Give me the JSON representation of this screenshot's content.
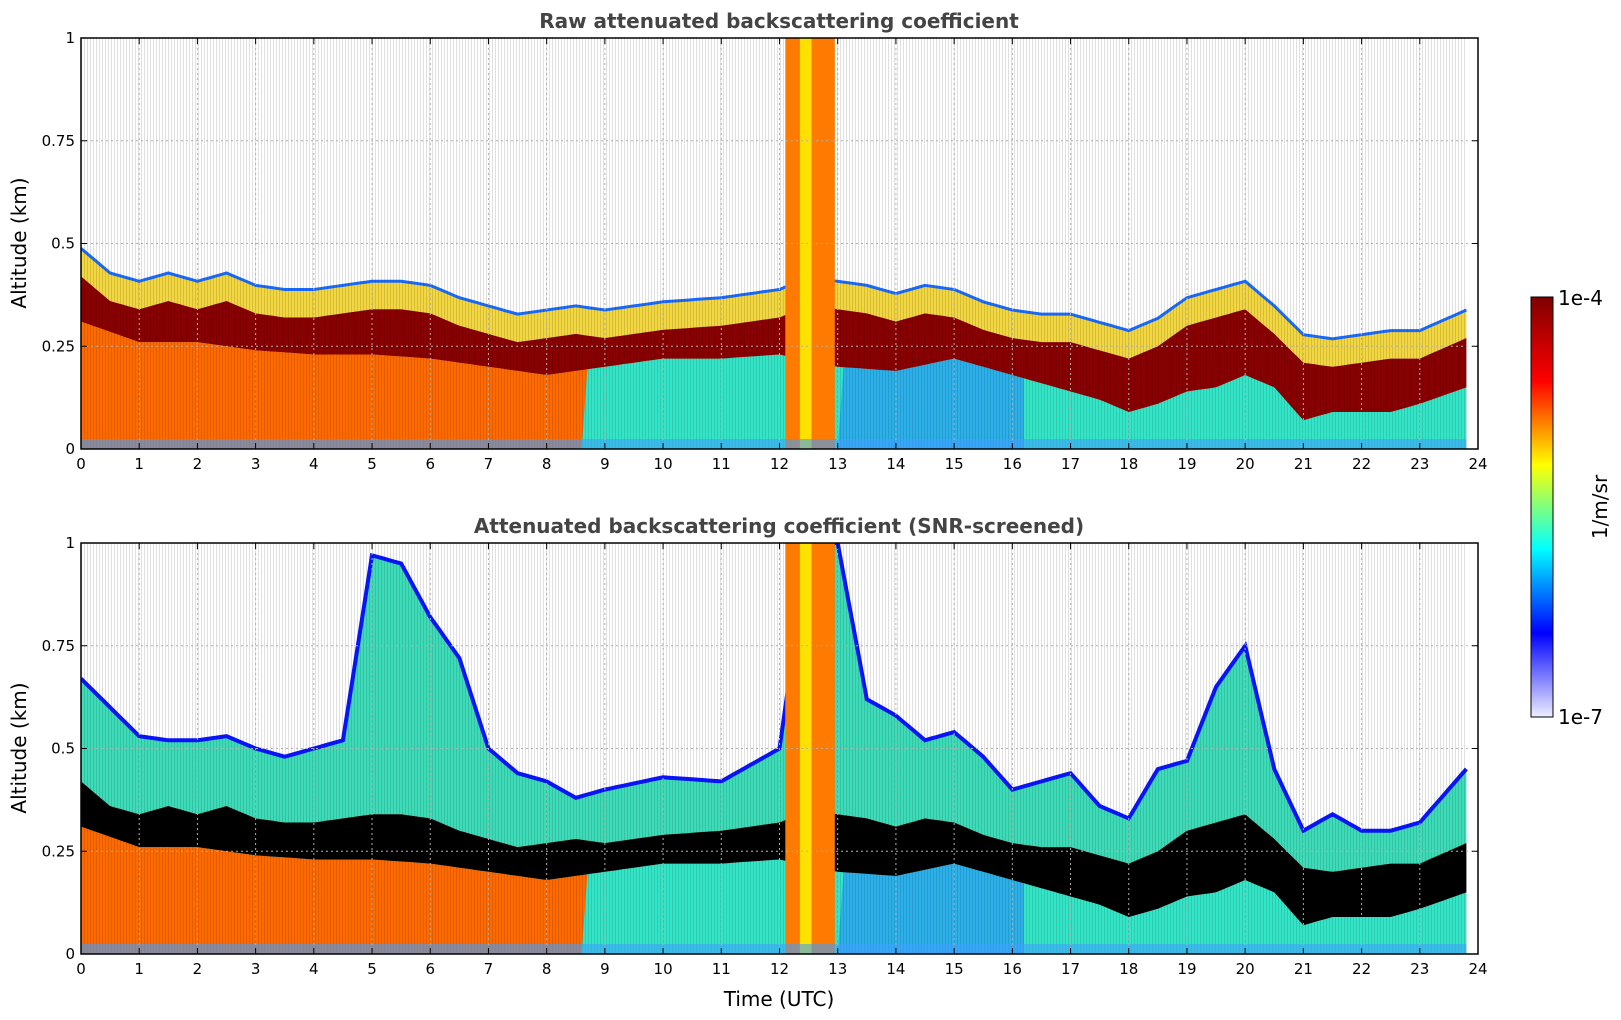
{
  "figure": {
    "colorbar": {
      "label": "1/m/sr",
      "max_label": "1e-4",
      "min_label": "1e-7",
      "vmin": 1e-07,
      "vmax": 0.0001,
      "scale": "log",
      "colormap": "jet",
      "colors": [
        "#eeeeff",
        "#0000ff",
        "#00ffff",
        "#ffff00",
        "#ff0000",
        "#7f0000"
      ]
    }
  },
  "chart_data": [
    {
      "type": "heatmap",
      "title": "Raw attenuated backscattering coefficient",
      "xlabel": "",
      "ylabel": "Altitude (km)",
      "xlim": [
        0,
        24
      ],
      "ylim": [
        0,
        1
      ],
      "x_ticks": [
        "0",
        "1",
        "2",
        "3",
        "4",
        "5",
        "6",
        "7",
        "8",
        "9",
        "10",
        "11",
        "12",
        "13",
        "14",
        "15",
        "16",
        "17",
        "18",
        "19",
        "20",
        "21",
        "22",
        "23",
        "24"
      ],
      "y_ticks": [
        "0",
        "0.25",
        "0.5",
        "0.75",
        "1"
      ],
      "grid": true,
      "screened": false,
      "layer_top_km": [
        [
          0,
          0.42
        ],
        [
          0.5,
          0.36
        ],
        [
          1,
          0.34
        ],
        [
          1.5,
          0.36
        ],
        [
          2,
          0.34
        ],
        [
          2.5,
          0.36
        ],
        [
          3,
          0.33
        ],
        [
          3.5,
          0.32
        ],
        [
          4,
          0.32
        ],
        [
          4.5,
          0.33
        ],
        [
          5,
          0.34
        ],
        [
          5.5,
          0.34
        ],
        [
          6,
          0.33
        ],
        [
          6.5,
          0.3
        ],
        [
          7,
          0.28
        ],
        [
          7.5,
          0.26
        ],
        [
          8,
          0.27
        ],
        [
          8.5,
          0.28
        ],
        [
          9,
          0.27
        ],
        [
          10,
          0.29
        ],
        [
          11,
          0.3
        ],
        [
          12,
          0.32
        ],
        [
          12.5,
          0.35
        ],
        [
          13,
          0.34
        ],
        [
          13.5,
          0.33
        ],
        [
          14,
          0.31
        ],
        [
          14.5,
          0.33
        ],
        [
          15,
          0.32
        ],
        [
          15.5,
          0.29
        ],
        [
          16,
          0.27
        ],
        [
          16.5,
          0.26
        ],
        [
          17,
          0.26
        ],
        [
          17.5,
          0.24
        ],
        [
          18,
          0.22
        ],
        [
          18.5,
          0.25
        ],
        [
          19,
          0.3
        ],
        [
          19.5,
          0.32
        ],
        [
          20,
          0.34
        ],
        [
          20.5,
          0.28
        ],
        [
          21,
          0.21
        ],
        [
          21.5,
          0.2
        ],
        [
          22,
          0.21
        ],
        [
          22.5,
          0.22
        ],
        [
          23,
          0.22
        ],
        [
          23.8,
          0.27
        ]
      ],
      "layer_bottom_km": [
        [
          0,
          0.31
        ],
        [
          1,
          0.26
        ],
        [
          2,
          0.26
        ],
        [
          3,
          0.24
        ],
        [
          4,
          0.23
        ],
        [
          5,
          0.23
        ],
        [
          6,
          0.22
        ],
        [
          7,
          0.2
        ],
        [
          8,
          0.18
        ],
        [
          9,
          0.2
        ],
        [
          10,
          0.22
        ],
        [
          11,
          0.22
        ],
        [
          12,
          0.23
        ],
        [
          13,
          0.2
        ],
        [
          14,
          0.19
        ],
        [
          15,
          0.22
        ],
        [
          16,
          0.18
        ],
        [
          17,
          0.14
        ],
        [
          17.5,
          0.12
        ],
        [
          18,
          0.09
        ],
        [
          18.5,
          0.11
        ],
        [
          19,
          0.14
        ],
        [
          19.5,
          0.15
        ],
        [
          20,
          0.18
        ],
        [
          20.5,
          0.15
        ],
        [
          21,
          0.07
        ],
        [
          21.5,
          0.09
        ],
        [
          22,
          0.09
        ],
        [
          22.5,
          0.09
        ],
        [
          23,
          0.11
        ],
        [
          23.8,
          0.15
        ]
      ]
    },
    {
      "type": "heatmap",
      "title": "Attenuated backscattering coefficient (SNR-screened)",
      "xlabel": "Time (UTC)",
      "ylabel": "Altitude (km)",
      "xlim": [
        0,
        24
      ],
      "ylim": [
        0,
        1
      ],
      "x_ticks": [
        "0",
        "1",
        "2",
        "3",
        "4",
        "5",
        "6",
        "7",
        "8",
        "9",
        "10",
        "11",
        "12",
        "13",
        "14",
        "15",
        "16",
        "17",
        "18",
        "19",
        "20",
        "21",
        "22",
        "23",
        "24"
      ],
      "y_ticks": [
        "0",
        "0.25",
        "0.5",
        "0.75",
        "1"
      ],
      "grid": true,
      "screened": true,
      "layer_top_km": [
        [
          0,
          0.42
        ],
        [
          0.5,
          0.36
        ],
        [
          1,
          0.34
        ],
        [
          1.5,
          0.36
        ],
        [
          2,
          0.34
        ],
        [
          2.5,
          0.36
        ],
        [
          3,
          0.33
        ],
        [
          3.5,
          0.32
        ],
        [
          4,
          0.32
        ],
        [
          4.5,
          0.33
        ],
        [
          5,
          0.34
        ],
        [
          5.5,
          0.34
        ],
        [
          6,
          0.33
        ],
        [
          6.5,
          0.3
        ],
        [
          7,
          0.28
        ],
        [
          7.5,
          0.26
        ],
        [
          8,
          0.27
        ],
        [
          8.5,
          0.28
        ],
        [
          9,
          0.27
        ],
        [
          10,
          0.29
        ],
        [
          11,
          0.3
        ],
        [
          12,
          0.32
        ],
        [
          12.5,
          0.35
        ],
        [
          13,
          0.34
        ],
        [
          13.5,
          0.33
        ],
        [
          14,
          0.31
        ],
        [
          14.5,
          0.33
        ],
        [
          15,
          0.32
        ],
        [
          15.5,
          0.29
        ],
        [
          16,
          0.27
        ],
        [
          16.5,
          0.26
        ],
        [
          17,
          0.26
        ],
        [
          17.5,
          0.24
        ],
        [
          18,
          0.22
        ],
        [
          18.5,
          0.25
        ],
        [
          19,
          0.3
        ],
        [
          19.5,
          0.32
        ],
        [
          20,
          0.34
        ],
        [
          20.5,
          0.28
        ],
        [
          21,
          0.21
        ],
        [
          21.5,
          0.2
        ],
        [
          22,
          0.21
        ],
        [
          22.5,
          0.22
        ],
        [
          23,
          0.22
        ],
        [
          23.8,
          0.27
        ]
      ],
      "layer_bottom_km": [
        [
          0,
          0.31
        ],
        [
          1,
          0.26
        ],
        [
          2,
          0.26
        ],
        [
          3,
          0.24
        ],
        [
          4,
          0.23
        ],
        [
          5,
          0.23
        ],
        [
          6,
          0.22
        ],
        [
          7,
          0.2
        ],
        [
          8,
          0.18
        ],
        [
          9,
          0.2
        ],
        [
          10,
          0.22
        ],
        [
          11,
          0.22
        ],
        [
          12,
          0.23
        ],
        [
          13,
          0.2
        ],
        [
          14,
          0.19
        ],
        [
          15,
          0.22
        ],
        [
          16,
          0.18
        ],
        [
          17,
          0.14
        ],
        [
          17.5,
          0.12
        ],
        [
          18,
          0.09
        ],
        [
          18.5,
          0.11
        ],
        [
          19,
          0.14
        ],
        [
          19.5,
          0.15
        ],
        [
          20,
          0.18
        ],
        [
          20.5,
          0.15
        ],
        [
          21,
          0.07
        ],
        [
          21.5,
          0.09
        ],
        [
          22,
          0.09
        ],
        [
          22.5,
          0.09
        ],
        [
          23,
          0.11
        ],
        [
          23.8,
          0.15
        ]
      ],
      "signal_top_km": [
        [
          0,
          0.67
        ],
        [
          0.5,
          0.6
        ],
        [
          1,
          0.53
        ],
        [
          1.5,
          0.52
        ],
        [
          2,
          0.52
        ],
        [
          2.5,
          0.53
        ],
        [
          3,
          0.5
        ],
        [
          3.5,
          0.48
        ],
        [
          4,
          0.5
        ],
        [
          4.5,
          0.52
        ],
        [
          5,
          0.97
        ],
        [
          5.5,
          0.95
        ],
        [
          6,
          0.82
        ],
        [
          6.5,
          0.72
        ],
        [
          7,
          0.5
        ],
        [
          7.5,
          0.44
        ],
        [
          8,
          0.42
        ],
        [
          8.5,
          0.38
        ],
        [
          9,
          0.4
        ],
        [
          10,
          0.43
        ],
        [
          11,
          0.42
        ],
        [
          12,
          0.5
        ],
        [
          12.5,
          1
        ],
        [
          13,
          1
        ],
        [
          13.5,
          0.62
        ],
        [
          14,
          0.58
        ],
        [
          14.5,
          0.52
        ],
        [
          15,
          0.54
        ],
        [
          15.5,
          0.48
        ],
        [
          16,
          0.4
        ],
        [
          16.5,
          0.42
        ],
        [
          17,
          0.44
        ],
        [
          17.5,
          0.36
        ],
        [
          18,
          0.33
        ],
        [
          18.5,
          0.45
        ],
        [
          19,
          0.47
        ],
        [
          19.5,
          0.65
        ],
        [
          20,
          0.75
        ],
        [
          20.5,
          0.45
        ],
        [
          21,
          0.3
        ],
        [
          21.5,
          0.34
        ],
        [
          22,
          0.3
        ],
        [
          22.5,
          0.3
        ],
        [
          23,
          0.32
        ],
        [
          23.8,
          0.45
        ]
      ]
    }
  ]
}
